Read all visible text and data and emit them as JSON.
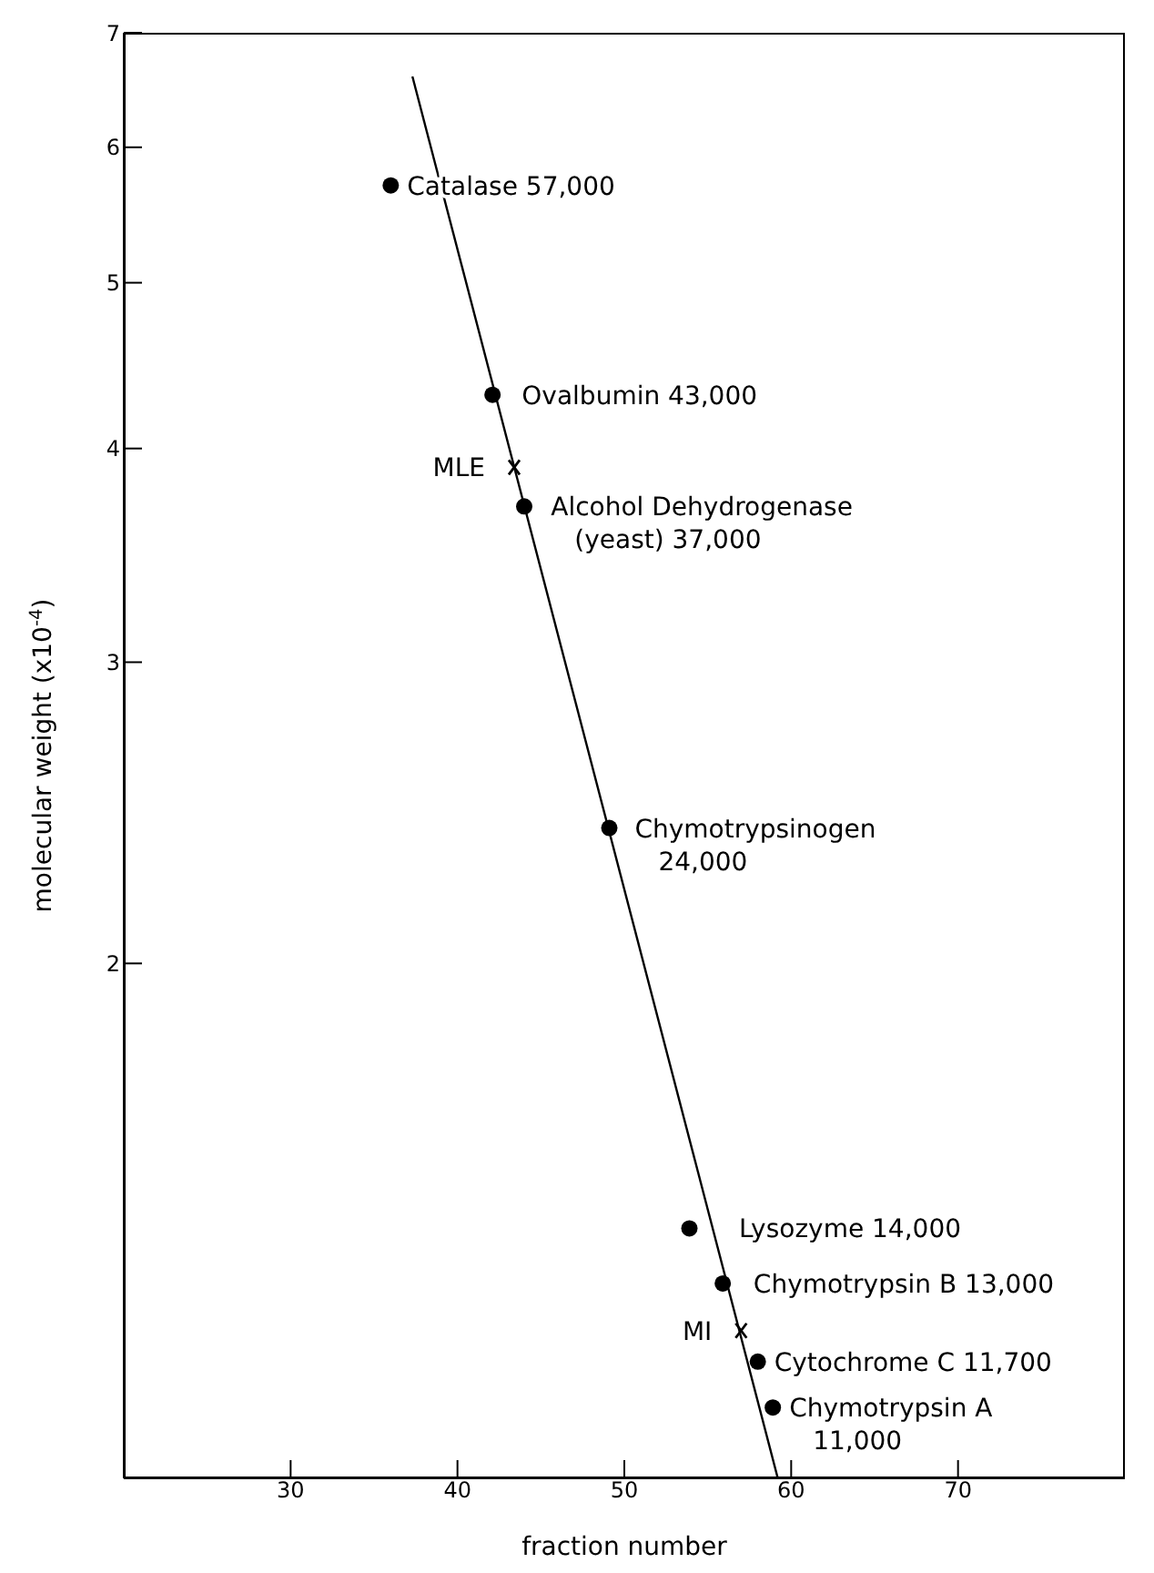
{
  "chart_data": {
    "type": "scatter",
    "xlabel": "fraction number",
    "ylabel": "molecular weight (x10$^{-4}$)",
    "log": "y",
    "grid": false,
    "xlim": [
      20,
      80
    ],
    "xticks": [
      30,
      40,
      50,
      60,
      70
    ],
    "ylim": [
      1,
      7
    ],
    "yticks": [
      2,
      3,
      4,
      5,
      6,
      7
    ],
    "series": [
      {
        "color": "#000000",
        "marker": "circle",
        "x": [
          36.0,
          42.1,
          44.0,
          49.1,
          53.9,
          55.9,
          58.0,
          58.9
        ],
        "values": [
          5.7,
          4.3,
          3.7,
          2.4,
          1.4,
          1.3,
          1.17,
          1.1
        ]
      },
      {
        "color": "#000000",
        "marker": "cross",
        "x": [
          43.4,
          57.0
        ],
        "values": [
          3.9,
          1.22
        ]
      },
      {
        "type": "line",
        "color": "#000000",
        "marker": "none",
        "x": [
          37.3,
          59.2
        ],
        "values": [
          6.6,
          1.0
        ]
      }
    ],
    "annotations": [
      {
        "text": "Catalase 57,000",
        "x": 36.0,
        "y": 5.7
      },
      {
        "text": "Ovalbumin 43,000",
        "x": 42.1,
        "y": 4.3
      },
      {
        "text": "Alcohol Dehydrogenase\n(yeast) 37,000",
        "x": 44.0,
        "y": 3.7
      },
      {
        "text": "Chymotrypsinogen\n24,000",
        "x": 49.1,
        "y": 2.4
      },
      {
        "text": "Lysozyme 14,000",
        "x": 53.9,
        "y": 1.4
      },
      {
        "text": "Chymotrypsin B 13,000",
        "x": 55.9,
        "y": 1.3
      },
      {
        "text": "Cytochrome C 11,700",
        "x": 58.0,
        "y": 1.17
      },
      {
        "text": "Chymotrypsin A\n11,000",
        "x": 58.9,
        "y": 1.1
      },
      {
        "text": "MLE",
        "x": 43.4,
        "y": 3.9
      },
      {
        "text": "MI",
        "x": 57.0,
        "y": 1.22
      }
    ]
  }
}
